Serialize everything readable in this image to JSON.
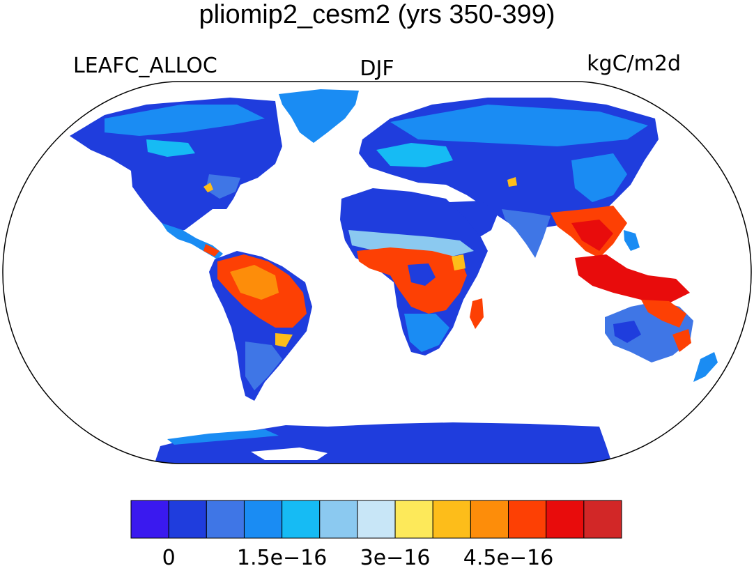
{
  "title": "pliomip2_cesm2 (yrs 350-399)",
  "left_label": "LEAFC_ALLOC",
  "center_label": "DJF",
  "right_label": "kgC/m2d",
  "colorbar": {
    "colors": [
      "#3a19ef",
      "#1f3ddd",
      "#3f76e6",
      "#1a8cf3",
      "#16bbf4",
      "#8bc9f0",
      "#c8e6f7",
      "#fde95a",
      "#fdbd1a",
      "#fd8d0a",
      "#fd4004",
      "#e80c0c",
      "#d22727"
    ],
    "tick_labels": [
      "0",
      "1.5e−16",
      "3e−16",
      "4.5e−16"
    ]
  },
  "palette": {
    "ocean": "#ffffff",
    "outline": "#000000"
  }
}
